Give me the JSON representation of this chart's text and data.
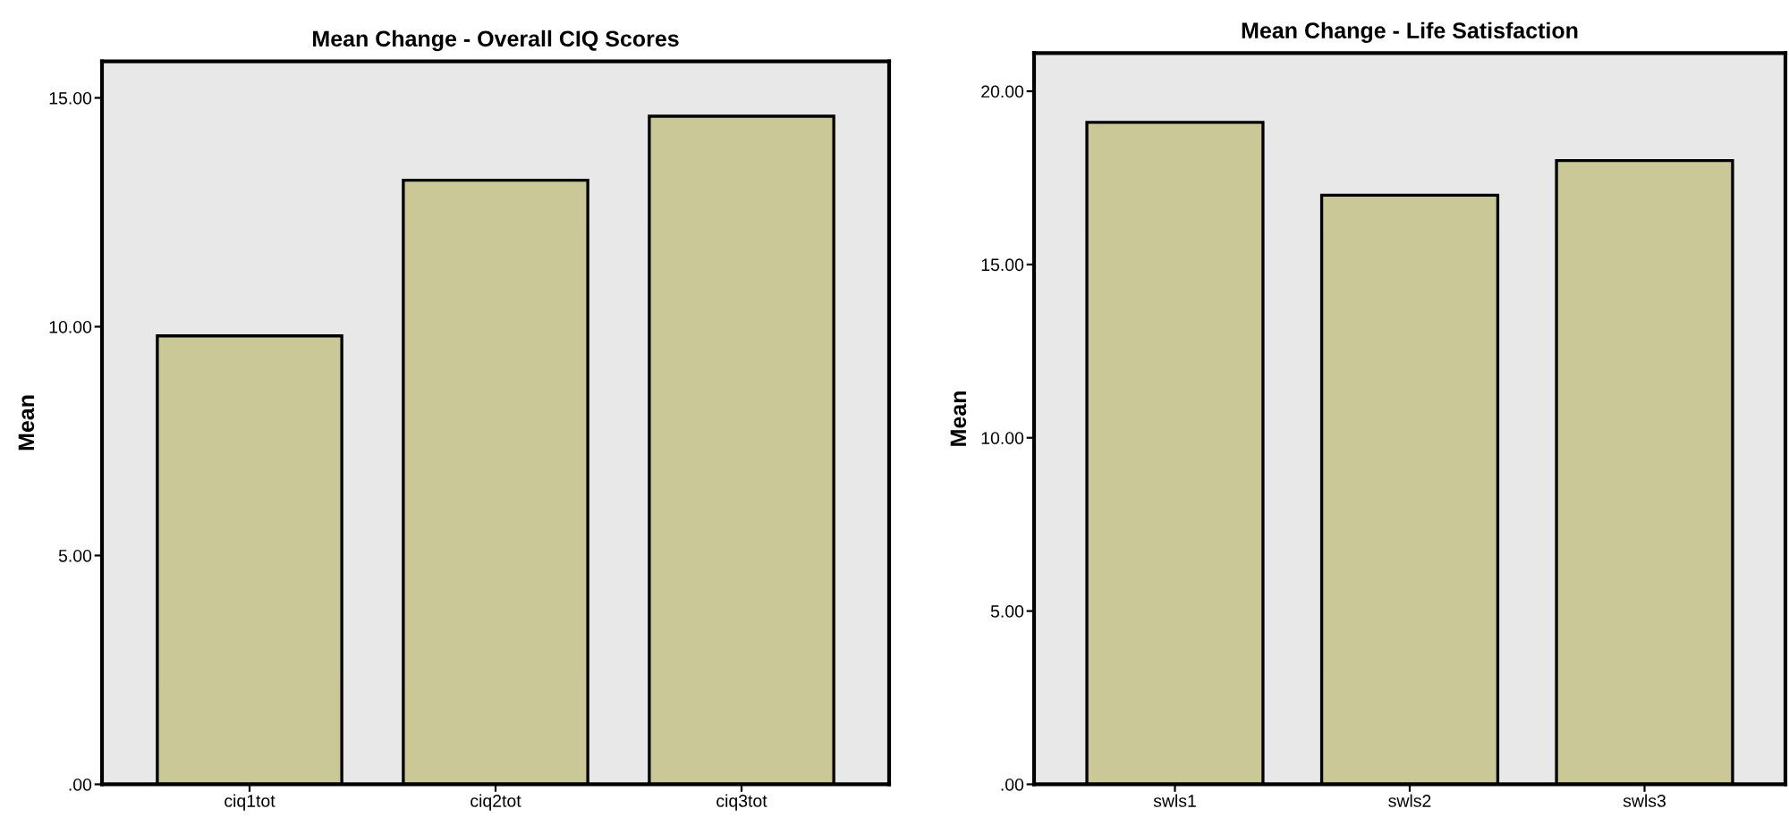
{
  "chart_data": [
    {
      "type": "bar",
      "title": "Mean Change - Overall CIQ Scores",
      "ylabel": "Mean",
      "categories": [
        "ciq1tot",
        "ciq2tot",
        "ciq3tot"
      ],
      "values": [
        9.8,
        13.2,
        14.6
      ],
      "color": "#c9c896",
      "ylim": [
        0,
        15.8
      ],
      "yticks": [
        {
          "value": 0,
          "label": ".00"
        },
        {
          "value": 5,
          "label": "5.00"
        },
        {
          "value": 10,
          "label": "10.00"
        },
        {
          "value": 15,
          "label": "15.00"
        }
      ],
      "grid": false,
      "legend": false
    },
    {
      "type": "bar",
      "title": "Mean Change - Life Satisfaction",
      "ylabel": "Mean",
      "categories": [
        "swls1",
        "swls2",
        "swls3"
      ],
      "values": [
        19.1,
        17.0,
        18.0
      ],
      "color": "#c9c896",
      "ylim": [
        0,
        21.1
      ],
      "yticks": [
        {
          "value": 0,
          "label": ".00"
        },
        {
          "value": 5,
          "label": "5.00"
        },
        {
          "value": 10,
          "label": "10.00"
        },
        {
          "value": 15,
          "label": "15.00"
        },
        {
          "value": 20,
          "label": "20.00"
        }
      ],
      "grid": false,
      "legend": false
    }
  ]
}
